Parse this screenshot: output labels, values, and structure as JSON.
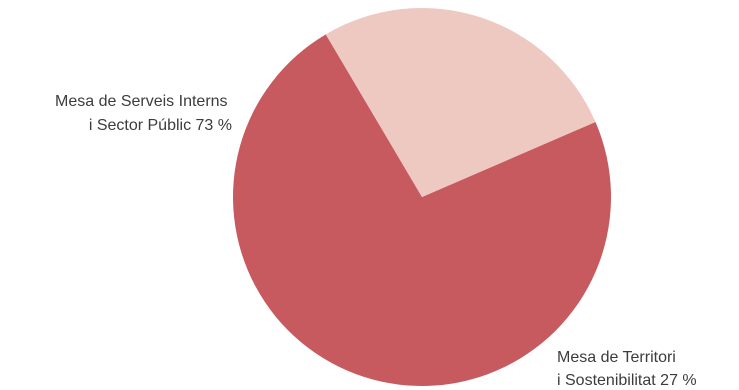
{
  "chart_data": {
    "type": "pie",
    "slices": [
      {
        "label_lines": [
          "Mesa de Serveis Interns",
          "i Sector Públic 73 %"
        ],
        "value": 73,
        "color": "#c75a5f"
      },
      {
        "label_lines": [
          "Mesa de Territori",
          "i Sostenibilitat 27 %"
        ],
        "value": 27,
        "color": "#eec9c2"
      }
    ]
  }
}
